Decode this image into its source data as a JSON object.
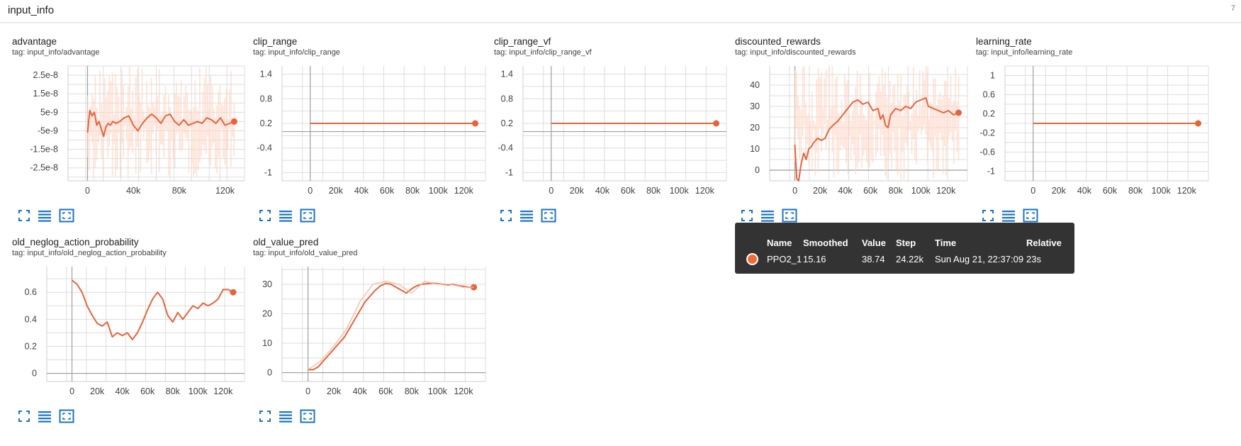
{
  "header": {
    "title": "input_info",
    "count": "7"
  },
  "colors": {
    "line": "#e8633a",
    "raw": "#ffd3c2",
    "grid": "#dddddd",
    "axis": "#9e9e9e",
    "icon": "#1a73c8"
  },
  "icons": [
    "fullscreen-icon",
    "lines-icon",
    "fit-domain-icon"
  ],
  "cards": [
    {
      "title": "advantage",
      "tag": "tag: input_info/advantage"
    },
    {
      "title": "clip_range",
      "tag": "tag: input_info/clip_range"
    },
    {
      "title": "clip_range_vf",
      "tag": "tag: input_info/clip_range_vf"
    },
    {
      "title": "discounted_rewards",
      "tag": "tag: input_info/discounted_rewards"
    },
    {
      "title": "learning_rate",
      "tag": "tag: input_info/learning_rate"
    },
    {
      "title": "old_neglog_action_probability",
      "tag": "tag: input_info/old_neglog_action_probability"
    },
    {
      "title": "old_value_pred",
      "tag": "tag: input_info/old_value_pred"
    }
  ],
  "tooltip": {
    "headers": [
      "Name",
      "Smoothed",
      "Value",
      "Step",
      "Time",
      "Relative"
    ],
    "row": [
      "PPO2_1",
      "15.16",
      "38.74",
      "24.22k",
      "Sun Aug 21, 22:37:09",
      "23s"
    ]
  },
  "chart_data": [
    {
      "type": "line",
      "title": "advantage",
      "xlim": [
        -17000,
        137000
      ],
      "ylim": [
        -3.2e-08,
        3e-08
      ],
      "xticks": [
        0,
        40000,
        80000,
        120000
      ],
      "xtick_labels": [
        "0",
        "40k",
        "80k",
        "120k"
      ],
      "yticks": [
        2.5e-08,
        1.5e-08,
        5e-09,
        -5e-09,
        -1.5e-08,
        -2.5e-08
      ],
      "ytick_labels": [
        "2.5e-8",
        "1.5e-8",
        "5e-9",
        "-5e-9",
        "-1.5e-8",
        "-2.5e-8"
      ],
      "series": [
        {
          "name": "PPO2_1",
          "x": [
            0,
            2000,
            4000,
            6000,
            8000,
            10000,
            12000,
            14000,
            16000,
            18000,
            20000,
            22000,
            25000,
            28000,
            32000,
            36000,
            40000,
            44000,
            48000,
            52000,
            56000,
            60000,
            64000,
            68000,
            72000,
            76000,
            80000,
            84000,
            88000,
            92000,
            96000,
            100000,
            104000,
            108000,
            112000,
            116000,
            120000,
            124000,
            128000
          ],
          "y": [
            -6e-09,
            6e-09,
            3e-09,
            5e-09,
            -2e-09,
            0,
            -4e-09,
            -8e-09,
            -3e-09,
            -1e-09,
            -2e-09,
            0,
            -1e-09,
            0,
            2e-09,
            3e-09,
            -2e-09,
            -5e-09,
            -1e-09,
            2e-09,
            4e-09,
            2e-09,
            -1e-09,
            3e-09,
            4e-09,
            0,
            -2e-09,
            1e-09,
            -2e-09,
            -1e-09,
            0,
            -1e-09,
            2e-09,
            1e-09,
            -1e-09,
            2e-09,
            -2e-09,
            -1e-09,
            0
          ]
        }
      ],
      "raw_band": [
        -3.2e-08,
        3e-08
      ]
    },
    {
      "type": "line",
      "title": "clip_range",
      "xlim": [
        -22000,
        137000
      ],
      "ylim": [
        -1.2,
        1.6
      ],
      "xticks": [
        0,
        20000,
        40000,
        60000,
        80000,
        100000,
        120000
      ],
      "xtick_labels": [
        "0",
        "20k",
        "40k",
        "60k",
        "80k",
        "100k",
        "120k"
      ],
      "yticks": [
        1.4,
        0.8,
        0.2,
        -0.4,
        -1
      ],
      "ytick_labels": [
        "1.4",
        "0.8",
        "0.2",
        "-0.4",
        "-1"
      ],
      "zero_line": 0,
      "series": [
        {
          "name": "PPO2_1",
          "x": [
            0,
            129000
          ],
          "y": [
            0.2,
            0.2
          ]
        }
      ]
    },
    {
      "type": "line",
      "title": "clip_range_vf",
      "xlim": [
        -22000,
        137000
      ],
      "ylim": [
        -1.2,
        1.6
      ],
      "xticks": [
        0,
        20000,
        40000,
        60000,
        80000,
        100000,
        120000
      ],
      "xtick_labels": [
        "0",
        "20k",
        "40k",
        "60k",
        "80k",
        "100k",
        "120k"
      ],
      "yticks": [
        1.4,
        0.8,
        0.2,
        -0.4,
        -1
      ],
      "ytick_labels": [
        "1.4",
        "0.8",
        "0.2",
        "-0.4",
        "-1"
      ],
      "zero_line": 0,
      "series": [
        {
          "name": "PPO2_1",
          "x": [
            0,
            129000
          ],
          "y": [
            0.2,
            0.2
          ]
        }
      ]
    },
    {
      "type": "line",
      "title": "discounted_rewards",
      "xlim": [
        -20000,
        137000
      ],
      "ylim": [
        -5,
        49
      ],
      "xticks": [
        0,
        20000,
        40000,
        60000,
        80000,
        100000,
        120000
      ],
      "xtick_labels": [
        "0",
        "20k",
        "40k",
        "60k",
        "80k",
        "100k",
        "120k"
      ],
      "yticks": [
        40,
        30,
        20,
        10,
        0
      ],
      "ytick_labels": [
        "40",
        "30",
        "20",
        "10",
        "0"
      ],
      "zero_line": 0,
      "series": [
        {
          "name": "PPO2_1",
          "x": [
            0,
            1500,
            3000,
            5000,
            7000,
            9000,
            11000,
            13000,
            15000,
            18000,
            21000,
            24000,
            27000,
            30000,
            34000,
            38000,
            42000,
            46000,
            50000,
            54000,
            58000,
            62000,
            66000,
            68000,
            70000,
            72000,
            74000,
            76000,
            80000,
            84000,
            88000,
            92000,
            96000,
            100000,
            104000,
            106000,
            110000,
            114000,
            118000,
            122000,
            126000,
            130000
          ],
          "y": [
            12,
            -4,
            -5,
            3,
            8,
            5,
            10,
            11,
            13,
            15,
            14,
            15,
            19,
            21,
            23,
            26,
            29,
            32,
            33,
            31,
            32,
            28,
            29,
            24,
            26,
            21,
            20,
            26,
            29,
            28,
            30,
            29,
            32,
            33,
            34,
            30,
            29,
            28,
            27,
            28,
            26,
            27
          ]
        }
      ],
      "raw_band": [
        -5,
        49
      ]
    },
    {
      "type": "line",
      "title": "learning_rate",
      "xlim": [
        -22000,
        137000
      ],
      "ylim": [
        -1.2,
        1.2
      ],
      "xticks": [
        0,
        20000,
        40000,
        60000,
        80000,
        100000,
        120000
      ],
      "xtick_labels": [
        "0",
        "20k",
        "40k",
        "60k",
        "80k",
        "100k",
        "120k"
      ],
      "yticks": [
        1,
        0.6,
        0.2,
        -0.2,
        -0.6,
        -1
      ],
      "ytick_labels": [
        "1",
        "0.6",
        "0.2",
        "-0.2",
        "-0.6",
        "-1"
      ],
      "series": [
        {
          "name": "PPO2_1",
          "x": [
            0,
            129000
          ],
          "y": [
            0,
            0
          ]
        }
      ]
    },
    {
      "type": "line",
      "title": "old_neglog_action_probability",
      "xlim": [
        -20000,
        137000
      ],
      "ylim": [
        -0.06,
        0.79
      ],
      "xticks": [
        0,
        20000,
        40000,
        60000,
        80000,
        100000,
        120000
      ],
      "xtick_labels": [
        "0",
        "20k",
        "40k",
        "60k",
        "80k",
        "100k",
        "120k"
      ],
      "yticks": [
        0.6,
        0.4,
        0.2,
        0
      ],
      "ytick_labels": [
        "0.6",
        "0.4",
        "0.2",
        "0"
      ],
      "zero_line": 0,
      "series": [
        {
          "name": "PPO2_1",
          "x": [
            0,
            4000,
            8000,
            12000,
            16000,
            20000,
            24000,
            28000,
            32000,
            36000,
            40000,
            44000,
            48000,
            52000,
            56000,
            60000,
            64000,
            68000,
            72000,
            76000,
            80000,
            84000,
            88000,
            92000,
            96000,
            100000,
            104000,
            108000,
            112000,
            116000,
            120000,
            124000,
            128000
          ],
          "y": [
            0.69,
            0.66,
            0.6,
            0.5,
            0.43,
            0.37,
            0.35,
            0.38,
            0.27,
            0.3,
            0.28,
            0.3,
            0.25,
            0.3,
            0.38,
            0.47,
            0.55,
            0.6,
            0.55,
            0.43,
            0.38,
            0.45,
            0.4,
            0.45,
            0.5,
            0.48,
            0.52,
            0.5,
            0.52,
            0.55,
            0.62,
            0.62,
            0.6
          ]
        }
      ]
    },
    {
      "type": "line",
      "title": "old_value_pred",
      "xlim": [
        -20000,
        137000
      ],
      "ylim": [
        -3,
        36
      ],
      "xticks": [
        0,
        20000,
        40000,
        60000,
        80000,
        100000,
        120000
      ],
      "xtick_labels": [
        "0",
        "20k",
        "40k",
        "60k",
        "80k",
        "100k",
        "120k"
      ],
      "yticks": [
        30,
        20,
        10,
        0
      ],
      "ytick_labels": [
        "30",
        "20",
        "10",
        "0"
      ],
      "zero_line": 0,
      "series": [
        {
          "name": "PPO2_1",
          "x": [
            0,
            4000,
            8000,
            12000,
            16000,
            20000,
            24000,
            28000,
            32000,
            36000,
            40000,
            44000,
            48000,
            52000,
            56000,
            60000,
            64000,
            68000,
            72000,
            76000,
            80000,
            84000,
            88000,
            92000,
            96000,
            100000,
            104000,
            108000,
            112000,
            116000,
            120000,
            124000,
            128000
          ],
          "y": [
            1,
            1,
            2,
            4,
            6,
            8,
            10,
            12,
            15,
            18,
            21,
            24,
            26,
            28,
            29.5,
            30.3,
            30,
            29,
            28,
            27,
            28.5,
            29.5,
            30,
            30.2,
            30.4,
            30.2,
            30,
            29.8,
            30,
            29.5,
            29.3,
            29,
            29
          ]
        },
        {
          "name": "raw",
          "x": [
            0,
            10000,
            20000,
            30000,
            40000,
            50000,
            60000,
            70000,
            80000,
            90000,
            100000,
            110000,
            120000,
            128000
          ],
          "y": [
            1,
            4,
            9,
            15,
            24,
            30,
            31,
            30,
            27,
            31,
            30,
            30,
            29,
            29
          ]
        }
      ]
    }
  ]
}
